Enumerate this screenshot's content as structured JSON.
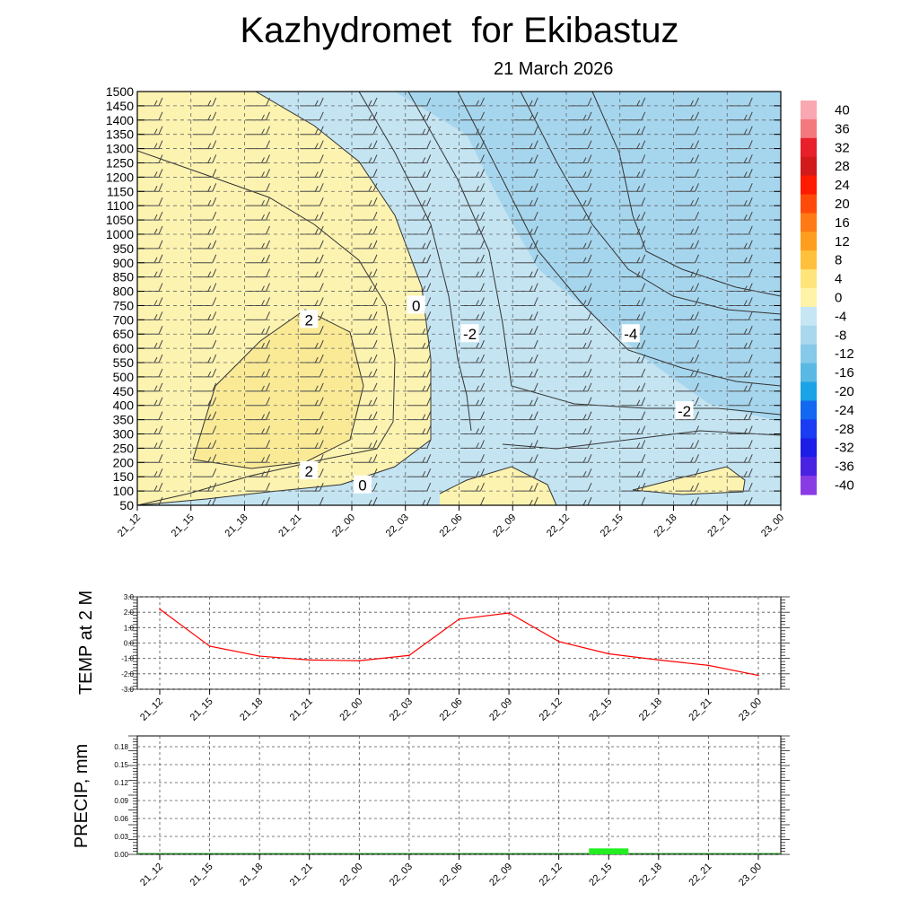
{
  "title": "Kazhydromet  for Ekibastuz",
  "subtitle": "21 March 2026",
  "time_labels": [
    "21_12",
    "21_15",
    "21_18",
    "21_21",
    "22_00",
    "22_03",
    "22_06",
    "22_09",
    "22_12",
    "22_15",
    "22_18",
    "22_21",
    "23_00"
  ],
  "colors": {
    "warm_fill": "#fdf3b0",
    "warm_core": "#faea96",
    "cool_fill": "#c4e4f2",
    "cold_fill": "#a6d6ee",
    "contour": "#333333",
    "barb": "#444444",
    "temp_line": "#ff0000",
    "precip_bar": "#22ee22",
    "grid": "#555555"
  },
  "chart_data": [
    {
      "type": "heatmap",
      "name": "cross_section",
      "variable": "temperature contours with wind barbs",
      "y_ticks": [
        50,
        100,
        150,
        200,
        250,
        300,
        350,
        400,
        450,
        500,
        550,
        600,
        650,
        700,
        750,
        800,
        850,
        900,
        950,
        1000,
        1050,
        1100,
        1150,
        1200,
        1250,
        1300,
        1350,
        1400,
        1450,
        1500
      ],
      "ylim": [
        50,
        1500
      ],
      "contour_labels": [
        {
          "text": "2",
          "time": "21_21",
          "level": 700
        },
        {
          "text": "0",
          "time": "22_03",
          "level": 750
        },
        {
          "text": "-2",
          "time": "22_06",
          "level": 650
        },
        {
          "text": "-4",
          "time": "22_15",
          "level": 650
        },
        {
          "text": "-2",
          "time": "22_18",
          "level": 380
        },
        {
          "text": "2",
          "time": "21_21",
          "level": 170
        },
        {
          "text": "0",
          "time": "22_00",
          "level": 120
        }
      ],
      "colorbar": {
        "ticks": [
          40,
          36,
          32,
          28,
          24,
          20,
          16,
          12,
          8,
          4,
          0,
          -4,
          -8,
          -12,
          -16,
          -20,
          -24,
          -28,
          -32,
          -36,
          -40
        ],
        "colors": [
          "#f9a7b0",
          "#f4797f",
          "#e8202a",
          "#d21a1a",
          "#ff1a00",
          "#ff4a0a",
          "#ff7a14",
          "#ff9e1e",
          "#ffc13c",
          "#ffe47a",
          "#fff3a8",
          "#c6e6f4",
          "#a9d8ee",
          "#86c9e8",
          "#5ab9e4",
          "#1aa3e6",
          "#1268f0",
          "#1a3cf2",
          "#1d1de8",
          "#4a23e2",
          "#8a3ce4"
        ]
      }
    },
    {
      "type": "line",
      "name": "temperature",
      "ylabel": "TEMP at 2 M",
      "ylim": [
        -3.0,
        3.0
      ],
      "y_ticks": [
        "3.0",
        "2.0",
        "1.0",
        "0.0",
        "-1.0",
        "-2.0",
        "-3.0"
      ],
      "x": [
        "21_12",
        "21_15",
        "21_18",
        "21_21",
        "22_00",
        "22_03",
        "22_06",
        "22_09",
        "22_12",
        "22_15",
        "22_18",
        "22_21",
        "23_00"
      ],
      "values": [
        2.2,
        -0.2,
        -0.85,
        -1.1,
        -1.15,
        -0.8,
        1.55,
        1.95,
        0.1,
        -0.7,
        -1.1,
        -1.45,
        -2.1
      ]
    },
    {
      "type": "bar",
      "name": "precipitation",
      "ylabel": "PRECIP, mm",
      "ylim": [
        0,
        0.18
      ],
      "y_ticks": [
        "0.18",
        "0.15",
        "0.12",
        "0.09",
        "0.06",
        "0.03",
        "0.00"
      ],
      "x": [
        "21_12",
        "21_15",
        "21_18",
        "21_21",
        "22_00",
        "22_03",
        "22_06",
        "22_09",
        "22_12",
        "22_15",
        "22_18",
        "22_21",
        "23_00"
      ],
      "values": [
        0,
        0,
        0,
        0,
        0,
        0,
        0,
        0,
        0,
        0.01,
        0,
        0,
        0
      ]
    }
  ]
}
